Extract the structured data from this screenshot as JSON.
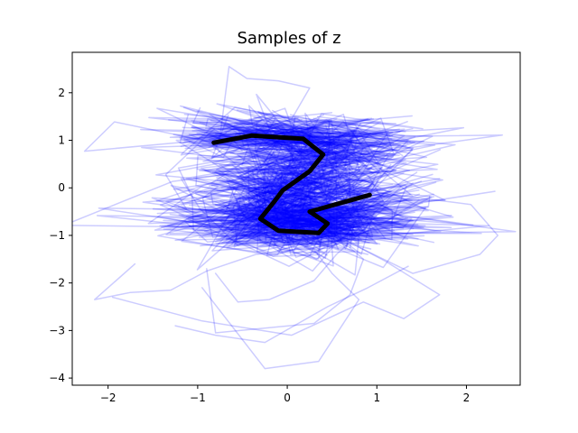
{
  "chart_data": {
    "type": "line",
    "title": "Samples of z",
    "xlabel": "",
    "ylabel": "",
    "xlim": [
      -2.4,
      2.6
    ],
    "ylim": [
      -4.15,
      2.85
    ],
    "x_ticks": [
      -2,
      -1,
      0,
      1,
      2
    ],
    "y_ticks": [
      2,
      1,
      0,
      -1,
      -2,
      -3,
      -4
    ],
    "x_tick_labels": [
      "−2",
      "−1",
      "0",
      "1",
      "2"
    ],
    "y_tick_labels": [
      "2",
      "1",
      "0",
      "−1",
      "−2",
      "−3",
      "−4"
    ],
    "grid": false,
    "legend": "none",
    "sample_color": "#0000ff",
    "sample_opacity": 0.2,
    "highlight_color": "#000000",
    "highlight_path": {
      "x": [
        -0.82,
        -0.4,
        0.18,
        0.4,
        0.25,
        -0.05,
        -0.15,
        -0.3,
        -0.1,
        0.35,
        0.45,
        0.25,
        0.92
      ],
      "y": [
        0.95,
        1.1,
        1.03,
        0.7,
        0.35,
        -0.05,
        -0.3,
        -0.65,
        -0.9,
        -0.95,
        -0.75,
        -0.5,
        -0.15
      ]
    },
    "outlier_samples": [
      {
        "x": [
          -0.75,
          -0.65,
          -0.45,
          -0.1,
          0.25,
          0.05,
          -0.35,
          -0.95
        ],
        "y": [
          1.1,
          2.55,
          2.3,
          2.25,
          2.1,
          1.45,
          1.2,
          1.05
        ]
      },
      {
        "x": [
          -1.7,
          -2.15,
          -1.75,
          -1.3,
          -0.9,
          -0.35,
          0.55,
          0.75
        ],
        "y": [
          -1.6,
          -2.35,
          -2.2,
          -2.15,
          -1.75,
          -1.4,
          -1.2,
          -0.8
        ]
      },
      {
        "x": [
          -0.95,
          -0.25,
          0.35,
          0.8,
          0.5,
          0.3,
          -0.1
        ],
        "y": [
          -2.1,
          -3.8,
          -3.65,
          -2.35,
          -1.8,
          -1.3,
          -1.0
        ]
      },
      {
        "x": [
          -0.9,
          -0.8,
          0.3,
          0.7,
          0.85,
          0.35
        ],
        "y": [
          -1.7,
          -3.05,
          -2.85,
          -2.25,
          -1.5,
          -0.7
        ]
      },
      {
        "x": [
          -1.95,
          -0.95,
          0.05,
          0.85,
          1.3,
          1.7,
          1.1,
          0.5
        ],
        "y": [
          -2.3,
          -2.8,
          -3.1,
          -2.4,
          -2.75,
          -2.25,
          -1.55,
          -0.95
        ]
      },
      {
        "x": [
          1.0,
          2.05,
          2.35,
          2.15,
          1.4,
          0.8
        ],
        "y": [
          -0.1,
          -0.35,
          -1.0,
          -1.4,
          -1.8,
          -1.25
        ]
      },
      {
        "x": [
          -0.8,
          -0.55,
          -0.2,
          0.3,
          0.55,
          0.9
        ],
        "y": [
          -1.8,
          -2.4,
          -2.35,
          -1.95,
          -1.4,
          -0.8
        ]
      },
      {
        "x": [
          -1.25,
          -0.8,
          -0.25,
          0.45,
          0.9,
          1.35
        ],
        "y": [
          -2.9,
          -3.1,
          -3.25,
          -2.5,
          -2.1,
          -1.65
        ]
      }
    ]
  }
}
